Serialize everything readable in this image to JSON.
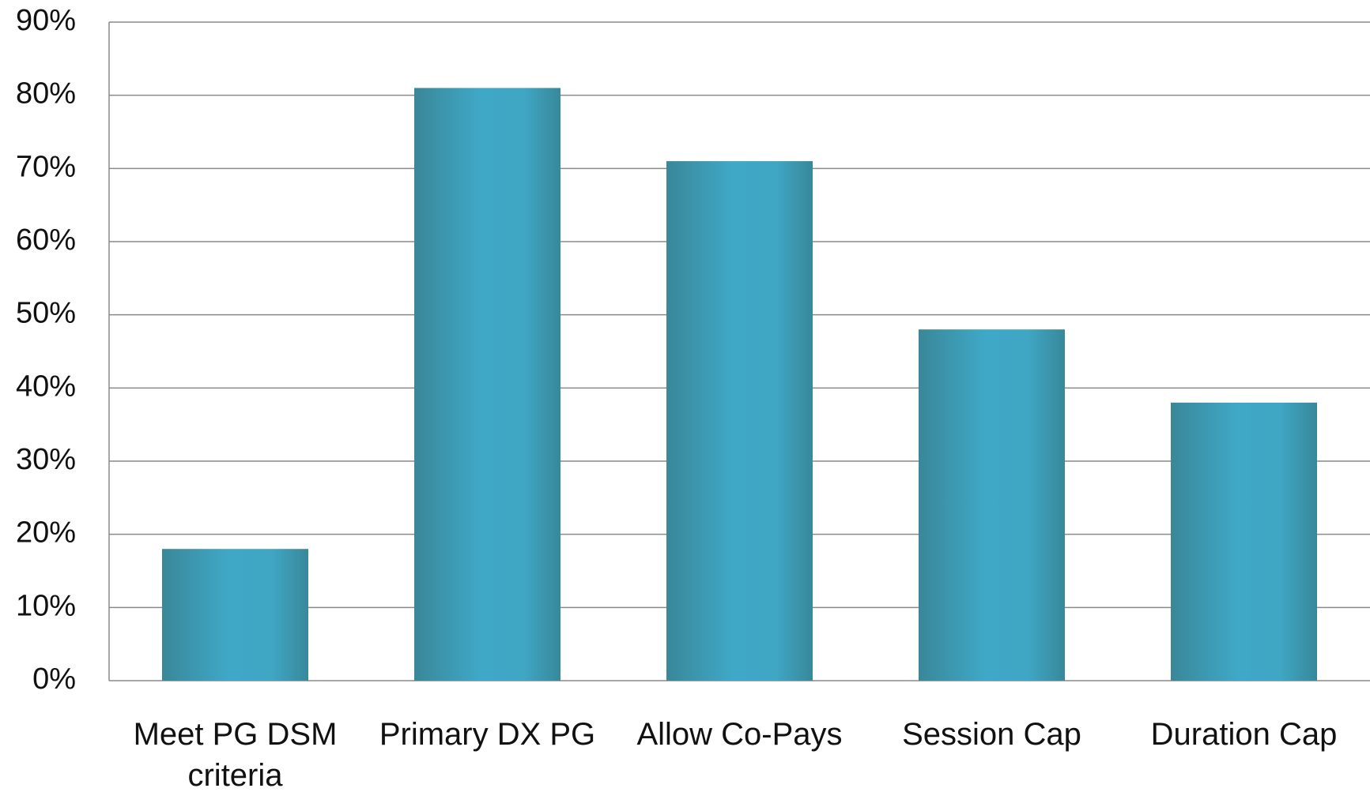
{
  "chart_data": {
    "type": "bar",
    "categories": [
      "Meet PG DSM criteria",
      "Primary DX PG",
      "Allow Co-Pays",
      "Session Cap",
      "Duration Cap"
    ],
    "values": [
      18,
      81,
      71,
      48,
      38
    ],
    "color": "#3fa8c6",
    "ylim": [
      0,
      90
    ],
    "yticks": [
      {
        "value": 0,
        "label": "0%"
      },
      {
        "value": 10,
        "label": "10%"
      },
      {
        "value": 20,
        "label": "20%"
      },
      {
        "value": 30,
        "label": "30%"
      },
      {
        "value": 40,
        "label": "40%"
      },
      {
        "value": 50,
        "label": "50%"
      },
      {
        "value": 60,
        "label": "60%"
      },
      {
        "value": 70,
        "label": "70%"
      },
      {
        "value": 80,
        "label": "80%"
      },
      {
        "value": 90,
        "label": "90%"
      }
    ],
    "grid": true
  }
}
